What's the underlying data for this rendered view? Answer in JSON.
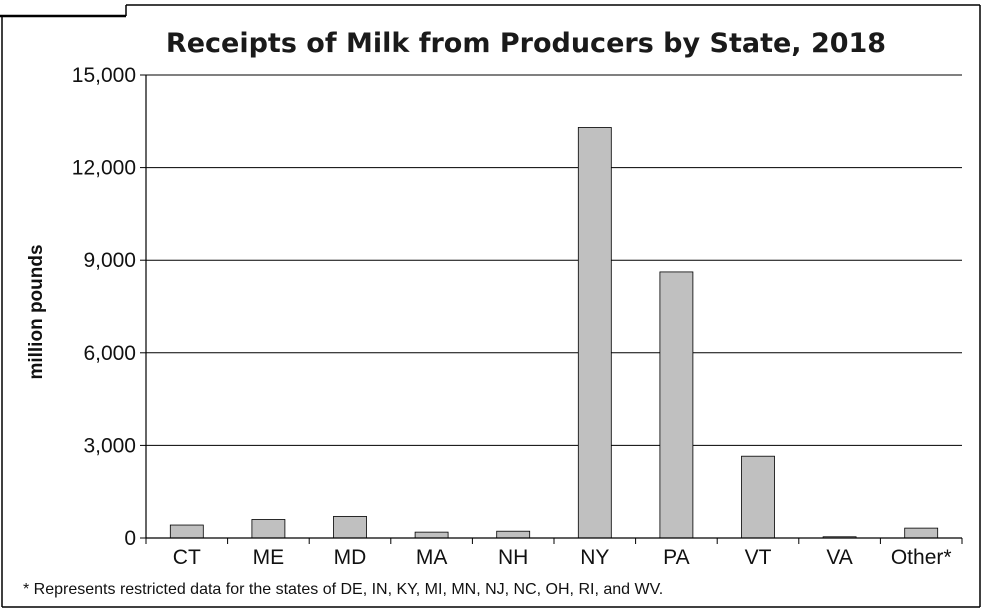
{
  "chart_data": {
    "type": "bar",
    "title": "Receipts of Milk from Producers by State, 2018",
    "ylabel": "million pounds",
    "xlabel": "",
    "categories": [
      "CT",
      "ME",
      "MD",
      "MA",
      "NH",
      "NY",
      "PA",
      "VT",
      "VA",
      "Other*"
    ],
    "values": [
      420,
      600,
      700,
      190,
      220,
      13300,
      8620,
      2650,
      40,
      320
    ],
    "ylim": [
      0,
      15000
    ],
    "yticks": [
      0,
      3000,
      6000,
      9000,
      12000,
      15000
    ],
    "ytick_labels": [
      "0",
      "3,000",
      "6,000",
      "9,000",
      "12,000",
      "15,000"
    ],
    "grid": true,
    "legend": "none",
    "bar_color": "#c0c0c0",
    "footnote": "* Represents restricted data for the states of DE, IN, KY, MI, MN, NJ, NC, OH, RI, and WV."
  }
}
